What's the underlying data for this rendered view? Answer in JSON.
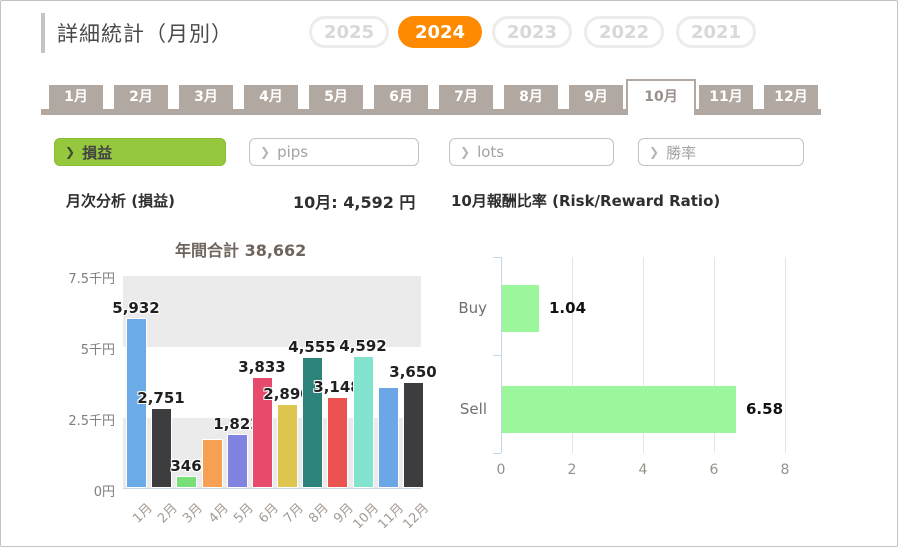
{
  "header": {
    "title": "詳細統計（月別）",
    "years": [
      {
        "label": "2025",
        "selected": false
      },
      {
        "label": "2024",
        "selected": true
      },
      {
        "label": "2023",
        "selected": false
      },
      {
        "label": "2022",
        "selected": false
      },
      {
        "label": "2021",
        "selected": false
      }
    ]
  },
  "month_tabs": [
    {
      "label": "1月",
      "selected": false
    },
    {
      "label": "2月",
      "selected": false
    },
    {
      "label": "3月",
      "selected": false
    },
    {
      "label": "4月",
      "selected": false
    },
    {
      "label": "5月",
      "selected": false
    },
    {
      "label": "6月",
      "selected": false
    },
    {
      "label": "7月",
      "selected": false
    },
    {
      "label": "8月",
      "selected": false
    },
    {
      "label": "9月",
      "selected": false
    },
    {
      "label": "10月",
      "selected": true
    },
    {
      "label": "11月",
      "selected": false
    },
    {
      "label": "12月",
      "selected": false
    }
  ],
  "filters": [
    {
      "label": "損益",
      "arrow": "❯",
      "selected": true
    },
    {
      "label": "pips",
      "arrow": "❯",
      "selected": false
    },
    {
      "label": "lots",
      "arrow": "❯",
      "selected": false
    },
    {
      "label": "勝率",
      "arrow": "❯",
      "selected": false
    }
  ],
  "summary": {
    "left_title": "月次分析 (損益)",
    "month_value": "10月: 4,592 円",
    "right_title": "10月報酬比率 (Risk/Reward Ratio)"
  },
  "chart_data": [
    {
      "type": "bar",
      "title": "年間合計 38,662",
      "categories": [
        "1月",
        "2月",
        "3月",
        "4月",
        "5月",
        "6月",
        "7月",
        "8月",
        "9月",
        "10月",
        "11月",
        "12月"
      ],
      "values": [
        5932,
        2751,
        346,
        1648,
        1822,
        3833,
        2890,
        4555,
        3148,
        4592,
        3495,
        3650
      ],
      "labels": [
        "5,932",
        "2,751",
        "346",
        "",
        "1,822",
        "3,833",
        "2,890",
        "4,555",
        "3,148",
        "4,592",
        "",
        "3,650"
      ],
      "bar_colors": [
        "#6bace8",
        "#3d3d3f",
        "#77de78",
        "#f5a053",
        "#8083e0",
        "#e84a6e",
        "#ddc550",
        "#2d837c",
        "#ea5350",
        "#82e4cf",
        "#6ba6e6",
        "#3d3d3f"
      ],
      "ytick_labels": [
        "0円",
        "2.5千円",
        "5千円",
        "7.5千円"
      ],
      "ylim": [
        0,
        7500
      ],
      "band_color": "#ebebeb",
      "ylabel": "",
      "xlabel": ""
    },
    {
      "type": "bar-horizontal",
      "categories": [
        "Buy",
        "Sell"
      ],
      "values": [
        1.04,
        6.58
      ],
      "labels": [
        "1.04",
        "6.58"
      ],
      "xtick_labels": [
        "0",
        "2",
        "4",
        "6",
        "8"
      ],
      "xticks": [
        0,
        2,
        4,
        6,
        8
      ],
      "xlim": [
        0,
        8
      ],
      "bar_color": "#9cf69c",
      "grid": true
    }
  ],
  "colors": {
    "accent_orange": "#fd8a00",
    "accent_green": "#96c83e",
    "tab_taupe": "#b2a8a2"
  }
}
